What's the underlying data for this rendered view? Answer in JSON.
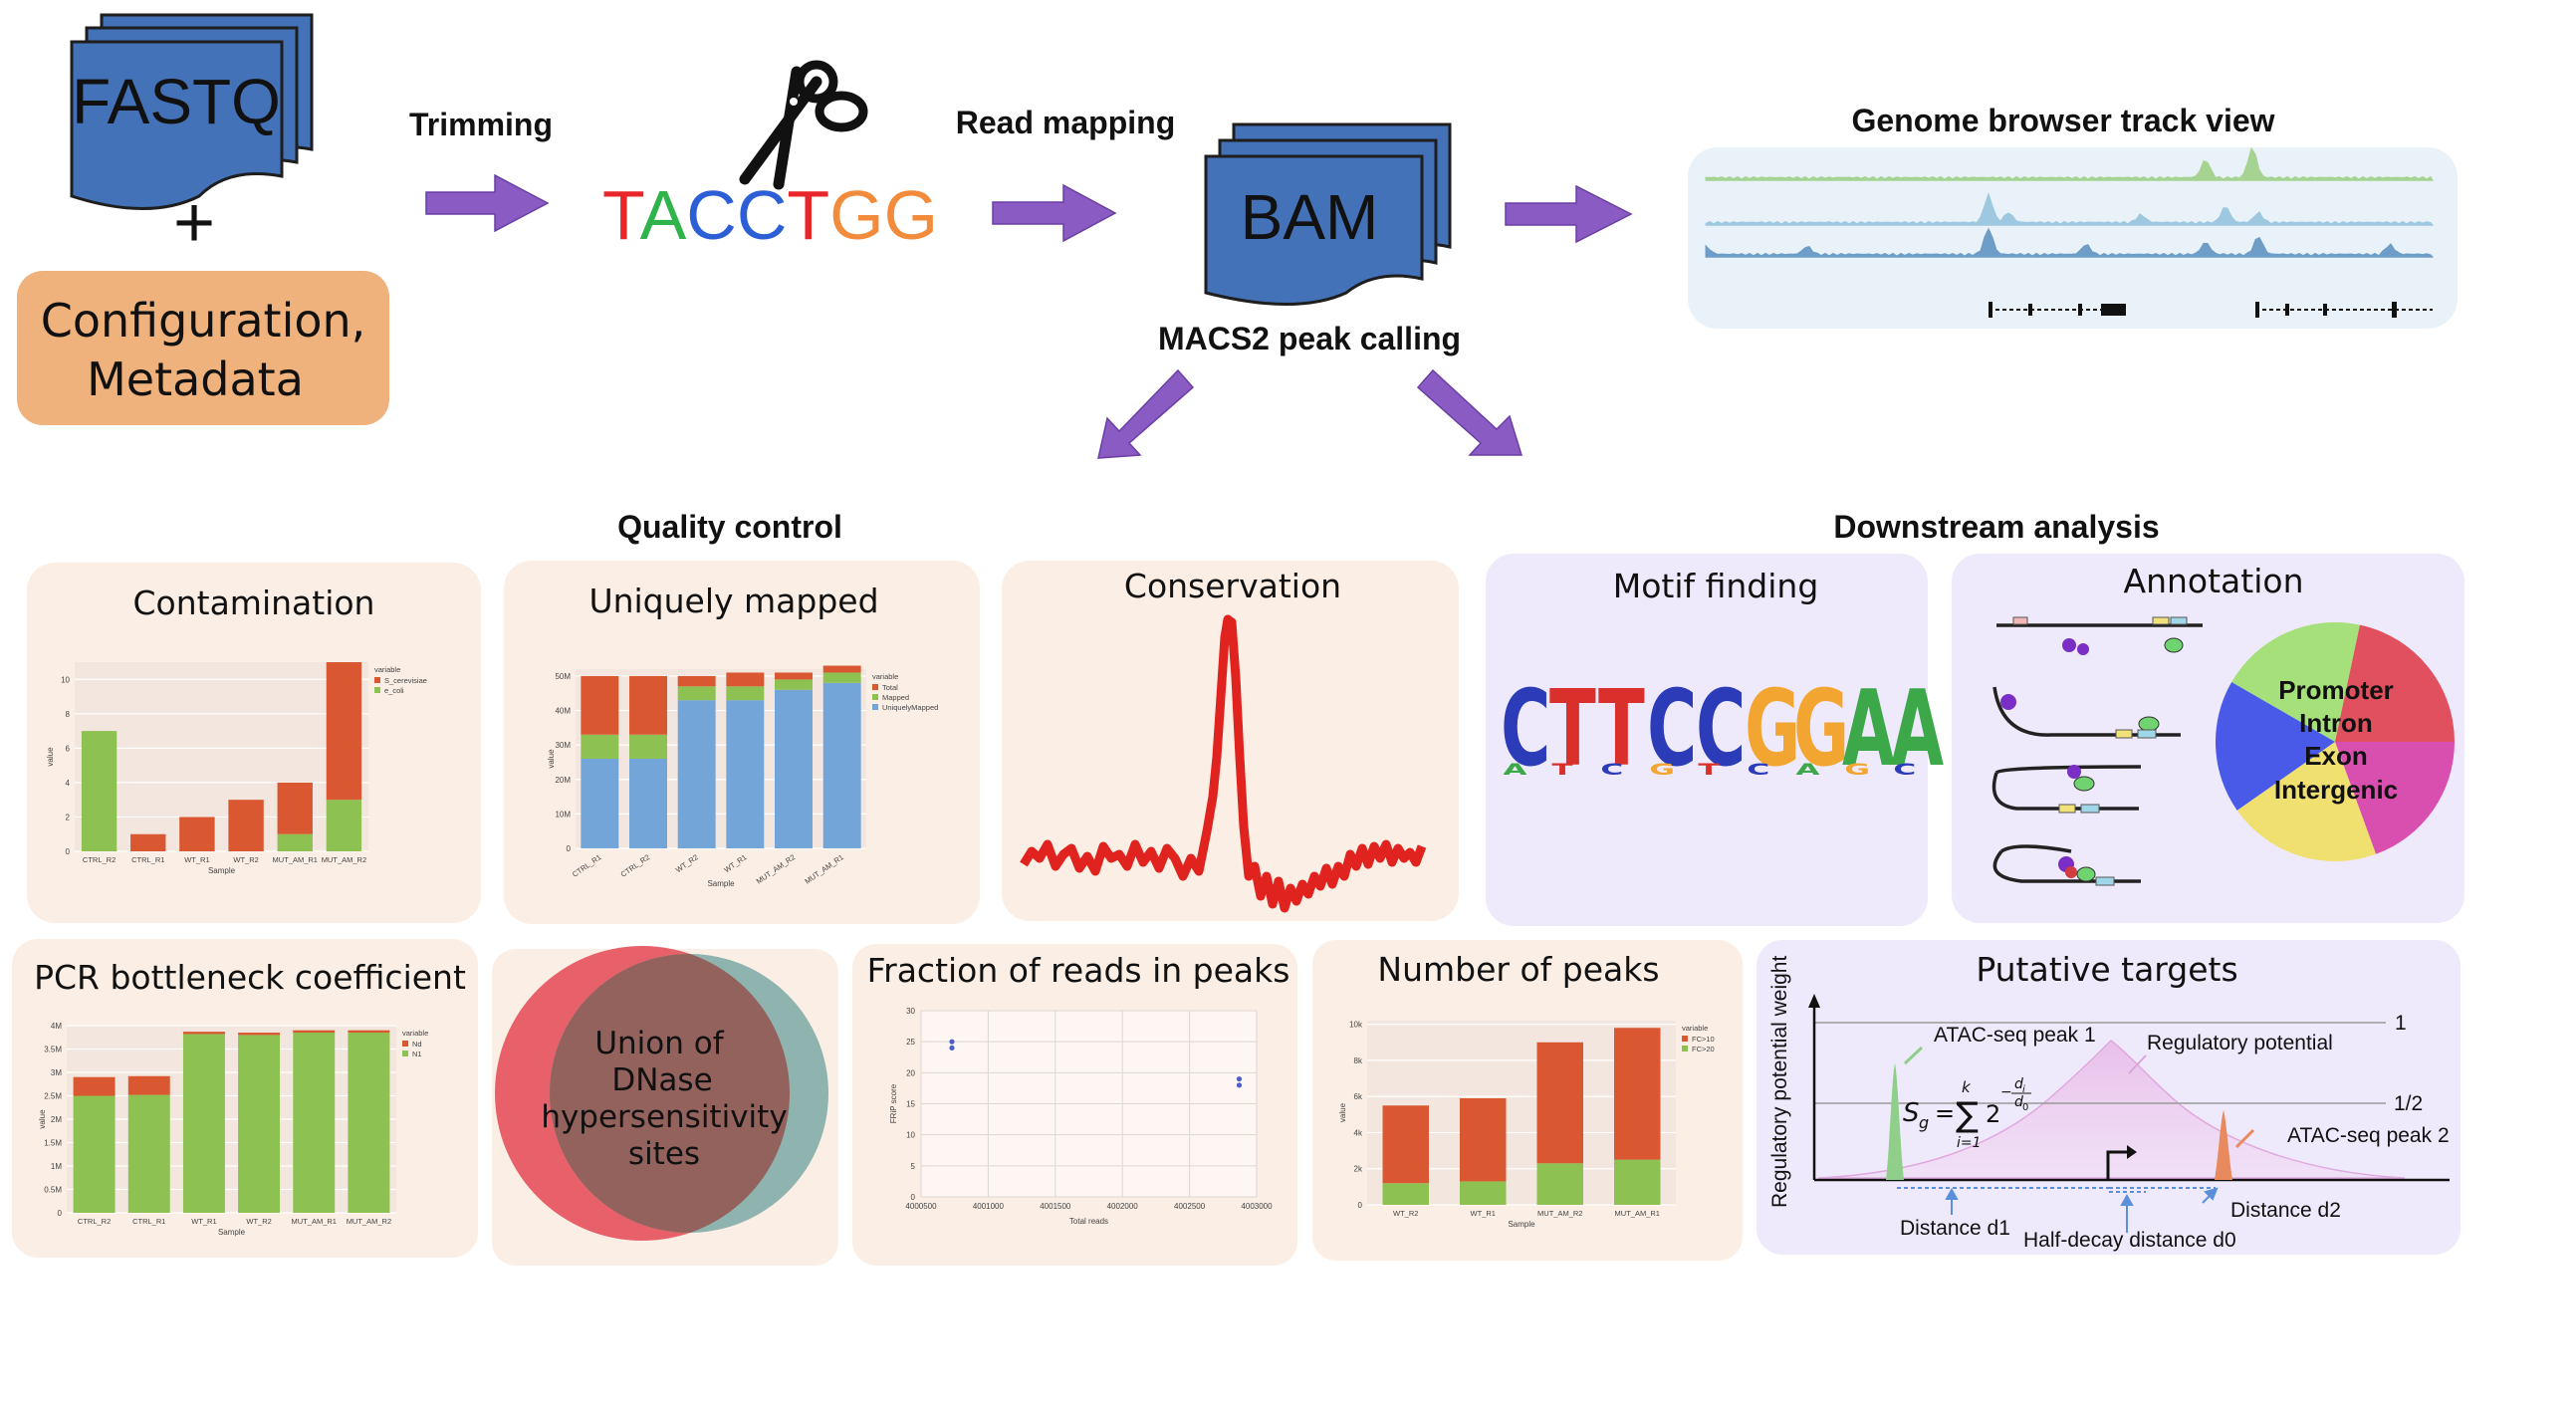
{
  "pipeline": {
    "fastq_label": "FASTQ",
    "plus_label": "+",
    "config_line1": "Configuration,",
    "config_line2": "Metadata",
    "trimming_label": "Trimming",
    "sequence": [
      {
        "ch": "T",
        "color": "#e8262a"
      },
      {
        "ch": "A",
        "color": "#2fb34a"
      },
      {
        "ch": "C",
        "color": "#2c5fd6"
      },
      {
        "ch": "C",
        "color": "#2c5fd6"
      },
      {
        "ch": "T",
        "color": "#e8262a"
      },
      {
        "ch": "G",
        "color": "#f28c3c"
      },
      {
        "ch": "G",
        "color": "#f28c3c"
      }
    ],
    "read_mapping_label": "Read mapping",
    "bam_label": "BAM",
    "genome_browser_label": "Genome browser track view",
    "macs2_label": "MACS2 peak calling",
    "qc_label": "Quality control",
    "downstream_label": "Downstream analysis"
  },
  "colors": {
    "doc_blue": "#4472b8",
    "arrow_purple": "#8b5bc4",
    "config_orange": "#f0b27d",
    "qc_panel": "#fbeee4",
    "ds_panel": "#efeafb",
    "bar_green": "#8dc152",
    "bar_red": "#d95831",
    "bar_blue": "#74a5d9",
    "genome_panel": "#e8f2f8"
  },
  "panels": {
    "contamination": {
      "title": "Contamination",
      "legend_title": "variable",
      "xlabel": "Sample",
      "ylabel": "value",
      "chart_data": {
        "type": "bar",
        "stacked": true,
        "categories": [
          "CTRL_R2",
          "CTRL_R1",
          "WT_R1",
          "WT_R2",
          "MUT_AM_R1",
          "MUT_AM_R2"
        ],
        "series": [
          {
            "name": "e_coli",
            "values": [
              7,
              0,
              0,
              0,
              1,
              3
            ]
          },
          {
            "name": "S_cerevisiae",
            "values": [
              0,
              1,
              2,
              3,
              3,
              8
            ]
          }
        ],
        "ylim": [
          0,
          11
        ],
        "yticks": [
          0,
          2,
          4,
          6,
          8,
          10
        ]
      }
    },
    "uniquely_mapped": {
      "title": "Uniquely mapped",
      "legend_title": "variable",
      "xlabel": "Sample",
      "ylabel": "value",
      "chart_data": {
        "type": "bar",
        "stacked": true,
        "categories": [
          "CTRL_R1",
          "CTRL_R2",
          "WT_R2",
          "WT_R1",
          "MUT_AM_R2",
          "MUT_AM_R1"
        ],
        "series": [
          {
            "name": "UniquelyMapped",
            "values": [
              26,
              26,
              43,
              43,
              46,
              48
            ]
          },
          {
            "name": "Mapped",
            "values": [
              7,
              7,
              4,
              4,
              3,
              3
            ]
          },
          {
            "name": "Total",
            "values": [
              17,
              17,
              3,
              4,
              2,
              2
            ]
          }
        ],
        "ylim": [
          0,
          52
        ],
        "ytick_values": [
          0,
          10,
          20,
          30,
          40,
          50
        ],
        "yticks": [
          "0",
          "10M",
          "20M",
          "30M",
          "40M",
          "50M"
        ]
      }
    },
    "conservation": {
      "title": "Conservation"
    },
    "motif_finding": {
      "title": "Motif finding",
      "motif": [
        {
          "ch": "C",
          "color": "#2c3cb8"
        },
        {
          "ch": "T",
          "color": "#d9302c"
        },
        {
          "ch": "T",
          "color": "#d9302c"
        },
        {
          "ch": "C",
          "color": "#2c3cb8"
        },
        {
          "ch": "C",
          "color": "#2c3cb8"
        },
        {
          "ch": "G",
          "color": "#f2a530"
        },
        {
          "ch": "G",
          "color": "#f2a530"
        },
        {
          "ch": "A",
          "color": "#3ca84a"
        },
        {
          "ch": "A",
          "color": "#3ca84a"
        }
      ]
    },
    "annotation": {
      "title": "Annotation",
      "pie_labels": [
        "Promoter",
        "Intron",
        "Exon",
        "Intergenic"
      ],
      "pie_colors": [
        "#a6e07a",
        "#e0505e",
        "#4a5ae8",
        "#f0e070",
        "#d94fb0"
      ]
    },
    "pcr_bottleneck": {
      "title": "PCR bottleneck coefficient",
      "legend_title": "variable",
      "xlabel": "Sample",
      "ylabel": "value",
      "chart_data": {
        "type": "bar",
        "stacked": true,
        "categories": [
          "CTRL_R2",
          "CTRL_R1",
          "WT_R1",
          "WT_R2",
          "MUT_AM_R1",
          "MUT_AM_R2"
        ],
        "series": [
          {
            "name": "N1",
            "values": [
              2.5,
              2.52,
              3.82,
              3.8,
              3.85,
              3.85
            ]
          },
          {
            "name": "Nd",
            "values": [
              0.4,
              0.4,
              0.05,
              0.05,
              0.05,
              0.05
            ]
          }
        ],
        "ylim": [
          0,
          4
        ],
        "ytick_values": [
          0,
          0.5,
          1,
          1.5,
          2,
          2.5,
          3,
          3.5,
          4
        ],
        "yticks": [
          "0",
          "0.5M",
          "1M",
          "1.5M",
          "2M",
          "2.5M",
          "3M",
          "3.5M",
          "4M"
        ]
      }
    },
    "union_dhs": {
      "title_lines": [
        "Union of",
        "DNase",
        "hypersensitivity",
        "sites"
      ],
      "colors": [
        "#e8606a",
        "#8fb3ae",
        "#93625d"
      ]
    },
    "frip": {
      "title": "Fraction of reads in peaks",
      "xlabel": "Total reads",
      "ylabel": "FRiP score",
      "chart_data": {
        "type": "scatter",
        "points": [
          {
            "x": 4000730,
            "y": 25
          },
          {
            "x": 4000730,
            "y": 24
          },
          {
            "x": 4002870,
            "y": 19
          },
          {
            "x": 4002870,
            "y": 18
          }
        ],
        "xlim": [
          4000500,
          4003000
        ],
        "ylim": [
          0,
          30
        ],
        "xticks": [
          4000500,
          4001000,
          4001500,
          4002000,
          4002500,
          4003000
        ],
        "yticks": [
          0,
          5,
          10,
          15,
          20,
          25,
          30
        ]
      }
    },
    "number_of_peaks": {
      "title": "Number of peaks",
      "legend_title": "variable",
      "xlabel": "Sample",
      "ylabel": "value",
      "chart_data": {
        "type": "bar",
        "stacked": true,
        "categories": [
          "WT_R2",
          "WT_R1",
          "MUT_AM_R2",
          "MUT_AM_R1"
        ],
        "series": [
          {
            "name": "FC>20",
            "values": [
              1.2,
              1.3,
              2.3,
              2.5
            ]
          },
          {
            "name": "FC>10",
            "values": [
              4.3,
              4.6,
              6.7,
              7.3
            ]
          }
        ],
        "ylim": [
          0,
          10.2
        ],
        "ytick_values": [
          0,
          2,
          4,
          6,
          8,
          10
        ],
        "yticks": [
          "0",
          "2k",
          "4k",
          "6k",
          "8k",
          "10k"
        ]
      }
    },
    "putative_targets": {
      "title": "Putative targets",
      "ylabel": "Regulatory potential weight",
      "peak1_label": "ATAC-seq peak 1",
      "peak2_label": "ATAC-seq peak 2",
      "regpot_label": "Regulatory potential",
      "one_label": "1",
      "half_label": "1/2",
      "d1_label": "Distance d1",
      "d2_label": "Distance d2",
      "d0_label": "Half-decay distance d0",
      "formula_s": "S",
      "formula_g": "g",
      "formula_eq": "=",
      "formula_sum": "∑",
      "formula_k": "k",
      "formula_i1": "i=1",
      "formula_2": "2",
      "formula_exp": "−",
      "formula_di": "d",
      "formula_i": "i",
      "formula_d0": "d",
      "formula_0": "0"
    }
  }
}
